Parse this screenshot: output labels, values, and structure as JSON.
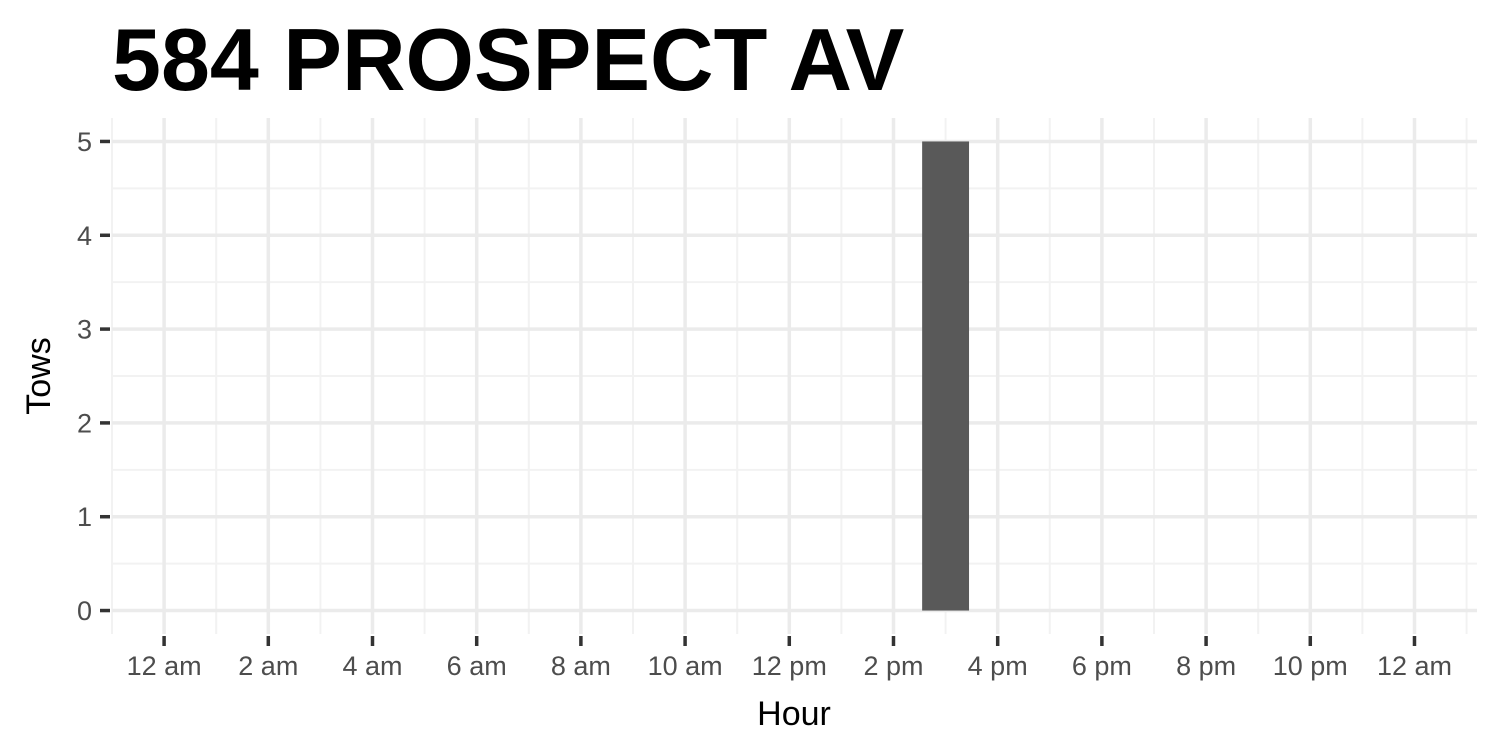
{
  "colors": {
    "bar": "#595959",
    "grid_major": "#ebebeb",
    "grid_minor": "#f2f2f2",
    "tick": "#333333",
    "tick_label": "#4d4d4d",
    "background": "#ffffff"
  },
  "chart_data": {
    "type": "bar",
    "title": "584 PROSPECT AV",
    "xlabel": "Hour",
    "ylabel": "Tows",
    "x_tick_labels": [
      "12 am",
      "2 am",
      "4 am",
      "6 am",
      "8 am",
      "10 am",
      "12 pm",
      "2 pm",
      "4 pm",
      "6 pm",
      "8 pm",
      "10 pm",
      "12 am"
    ],
    "x_tick_hours": [
      0,
      2,
      4,
      6,
      8,
      10,
      12,
      14,
      16,
      18,
      20,
      22,
      24
    ],
    "y_tick_labels": [
      "0",
      "1",
      "2",
      "3",
      "4",
      "5"
    ],
    "y_ticks": [
      0,
      1,
      2,
      3,
      4,
      5
    ],
    "xlim": [
      -1,
      25.2
    ],
    "ylim": [
      -0.25,
      5.25
    ],
    "bar_width_hours": 0.9,
    "bars": [
      {
        "hour": 15,
        "value": 5
      }
    ],
    "grid": true,
    "legend": "none"
  }
}
